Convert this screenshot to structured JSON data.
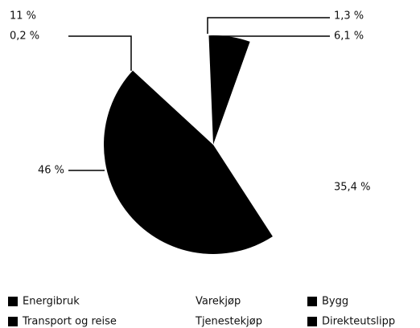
{
  "chart_data": {
    "type": "pie",
    "categories": [
      "Direkteutslipp",
      "Bygg",
      "Varekjøp",
      "Energibruk",
      "Tjenestekjøp",
      "Transport og reise"
    ],
    "values": [
      1.3,
      6.1,
      35.4,
      46,
      11,
      0.2
    ],
    "value_labels": [
      "1,3 %",
      "6,1 %",
      "35,4 %",
      "46 %",
      "11 %",
      "0,2 %"
    ],
    "colors": [
      "#ffffff",
      "#000000",
      "#ffffff",
      "#000000",
      "#ffffff",
      "#ffffff"
    ],
    "legend": [
      {
        "name": "Energibruk",
        "color": "#000000"
      },
      {
        "name": "Varekjøp",
        "color": "#ffffff"
      },
      {
        "name": "Bygg",
        "color": "#000000"
      },
      {
        "name": "Transport og reise",
        "color": "#000000"
      },
      {
        "name": "Tjenestekjøp",
        "color": "#ffffff"
      },
      {
        "name": "Direkteutslipp",
        "color": "#000000"
      }
    ]
  }
}
